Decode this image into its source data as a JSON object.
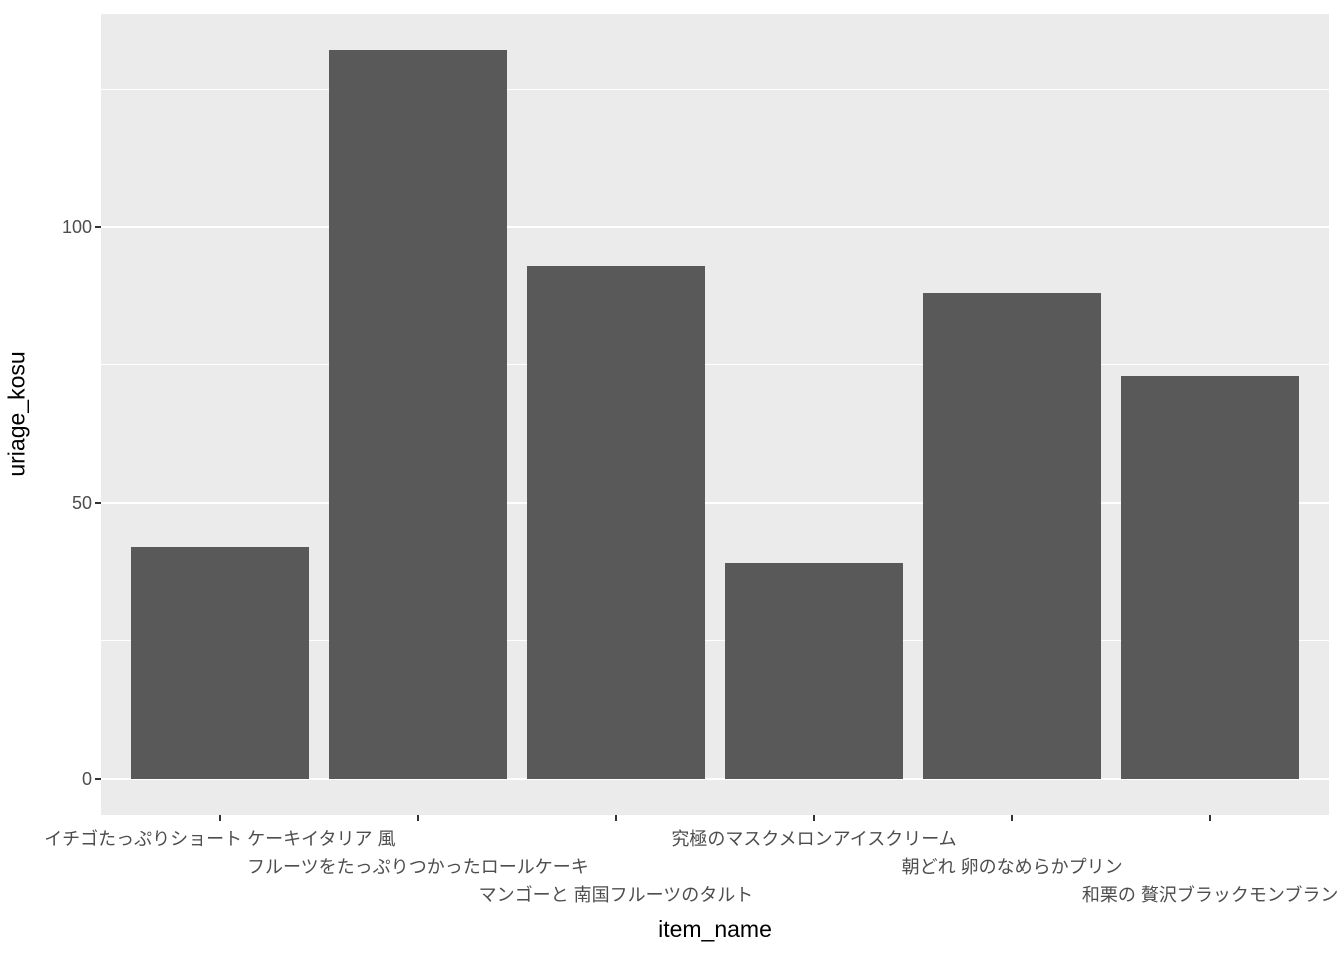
{
  "chart_data": {
    "type": "bar",
    "title": "",
    "xlabel": "item_name",
    "ylabel": "uriage_kosu",
    "categories": [
      "イチゴたっぷりショート ケーキイタリア 風",
      "フルーツをたっぷりつかったロールケーキ",
      "マンゴーと 南国フルーツのタルト",
      "究極のマスクメロンアイスクリーム",
      "朝どれ 卵のなめらかプリン",
      "和栗の 贅沢ブラックモンブラン"
    ],
    "values": [
      42,
      132,
      93,
      39,
      88,
      73
    ],
    "ylim": [
      0,
      132
    ],
    "yticks": [
      0,
      50,
      100
    ],
    "yticks_minor": [
      25,
      75,
      125
    ],
    "grid": "on",
    "legend": "none",
    "label_stagger_rows": [
      1,
      2,
      3,
      1,
      2,
      3
    ],
    "colors": {
      "bar_fill": "#595959",
      "panel_bg": "#EBEBEB",
      "grid_major": "#FFFFFF",
      "grid_minor": "#FFFFFF",
      "tick_text": "#4D4D4D",
      "tick_mark": "#333333",
      "axis_title": "#000000",
      "plot_bg": "#FFFFFF"
    }
  }
}
